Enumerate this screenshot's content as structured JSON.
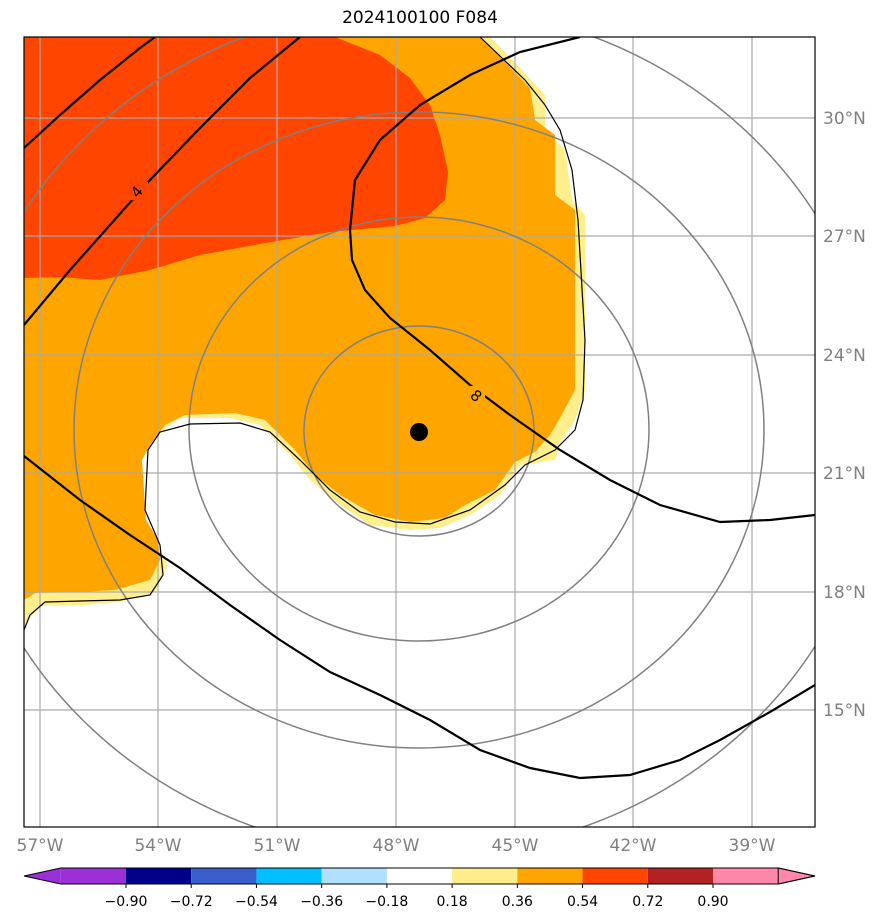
{
  "title": "2024100100 F084",
  "map": {
    "lon_labels": [
      "57°W",
      "54°W",
      "51°W",
      "48°W",
      "45°W",
      "42°W",
      "39°W"
    ],
    "lat_labels": [
      "30°N",
      "27°N",
      "24°N",
      "21°N",
      "18°N",
      "15°N"
    ],
    "contour_labels": [
      "4",
      "8"
    ],
    "center_marker": {
      "lon": -47.4,
      "lat": 22.0
    }
  },
  "colorbar": {
    "tick_labels": [
      "−0.90",
      "−0.72",
      "−0.54",
      "−0.36",
      "−0.18",
      "0.18",
      "0.36",
      "0.54",
      "0.72",
      "0.90"
    ],
    "colors": [
      "#9b30d9",
      "#00008b",
      "#3a5fcd",
      "#00bfff",
      "#b0e0ff",
      "#ffffff",
      "#ffee8c",
      "#ffa500",
      "#ff4500",
      "#b22222",
      "#ff88aa"
    ]
  }
}
